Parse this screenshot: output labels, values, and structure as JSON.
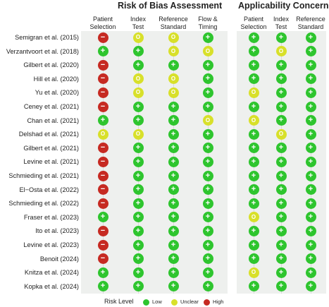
{
  "sections": {
    "bias_title": "Risk of Bias Assessment",
    "applicability_title": "Applicability Concerns"
  },
  "bias_columns": [
    "Patient\nSelection",
    "Index\nTest",
    "Reference\nStandard",
    "Flow &\nTiming"
  ],
  "applicability_columns": [
    "Patient\nSelection",
    "Index\nTest",
    "Reference\nStandard"
  ],
  "symbols": {
    "low": "+",
    "unclear": "O",
    "high": "−"
  },
  "colors": {
    "low": "#2ec52e",
    "unclear": "#d8e02a",
    "high": "#c62a22"
  },
  "legend": {
    "title": "Risk Level",
    "items": [
      {
        "key": "low",
        "label": "Low"
      },
      {
        "key": "unclear",
        "label": "Unclear"
      },
      {
        "key": "high",
        "label": "High"
      }
    ]
  },
  "studies": [
    {
      "name": "Semigran et al. (2015)",
      "bias": [
        "high",
        "unclear",
        "unclear",
        "low"
      ],
      "applicability": [
        "low",
        "low",
        "low"
      ]
    },
    {
      "name": "Verzantvoort et al. (2018)",
      "bias": [
        "low",
        "low",
        "unclear",
        "unclear"
      ],
      "applicability": [
        "low",
        "unclear",
        "low"
      ]
    },
    {
      "name": "Gilbert et al. (2020)",
      "bias": [
        "high",
        "low",
        "low",
        "low"
      ],
      "applicability": [
        "low",
        "low",
        "low"
      ]
    },
    {
      "name": "Hill et al. (2020)",
      "bias": [
        "high",
        "unclear",
        "unclear",
        "low"
      ],
      "applicability": [
        "low",
        "low",
        "low"
      ]
    },
    {
      "name": "Yu et al. (2020)",
      "bias": [
        "high",
        "unclear",
        "unclear",
        "low"
      ],
      "applicability": [
        "unclear",
        "low",
        "low"
      ]
    },
    {
      "name": "Ceney et al. (2021)",
      "bias": [
        "high",
        "low",
        "low",
        "low"
      ],
      "applicability": [
        "low",
        "low",
        "low"
      ]
    },
    {
      "name": "Chan et al. (2021)",
      "bias": [
        "low",
        "low",
        "low",
        "unclear"
      ],
      "applicability": [
        "unclear",
        "low",
        "low"
      ]
    },
    {
      "name": "Delshad et al. (2021)",
      "bias": [
        "unclear",
        "unclear",
        "low",
        "low"
      ],
      "applicability": [
        "low",
        "unclear",
        "low"
      ]
    },
    {
      "name": "Gilbert et al. (2021)",
      "bias": [
        "high",
        "low",
        "low",
        "low"
      ],
      "applicability": [
        "low",
        "low",
        "low"
      ]
    },
    {
      "name": "Levine et al. (2021)",
      "bias": [
        "high",
        "low",
        "low",
        "low"
      ],
      "applicability": [
        "low",
        "low",
        "low"
      ]
    },
    {
      "name": "Schmieding et al. (2021)",
      "bias": [
        "high",
        "low",
        "low",
        "low"
      ],
      "applicability": [
        "low",
        "low",
        "low"
      ]
    },
    {
      "name": "El−Osta et al. (2022)",
      "bias": [
        "high",
        "low",
        "low",
        "low"
      ],
      "applicability": [
        "low",
        "low",
        "low"
      ]
    },
    {
      "name": "Schmieding et al. (2022)",
      "bias": [
        "high",
        "low",
        "low",
        "low"
      ],
      "applicability": [
        "low",
        "low",
        "low"
      ]
    },
    {
      "name": "Fraser et al. (2023)",
      "bias": [
        "low",
        "low",
        "low",
        "low"
      ],
      "applicability": [
        "unclear",
        "low",
        "low"
      ]
    },
    {
      "name": "Ito et al. (2023)",
      "bias": [
        "high",
        "low",
        "low",
        "low"
      ],
      "applicability": [
        "low",
        "low",
        "low"
      ]
    },
    {
      "name": "Levine et al. (2023)",
      "bias": [
        "high",
        "low",
        "low",
        "low"
      ],
      "applicability": [
        "low",
        "low",
        "low"
      ]
    },
    {
      "name": "Benoit (2024)",
      "bias": [
        "high",
        "low",
        "low",
        "low"
      ],
      "applicability": [
        "low",
        "low",
        "low"
      ]
    },
    {
      "name": "Knitza et al. (2024)",
      "bias": [
        "low",
        "low",
        "low",
        "low"
      ],
      "applicability": [
        "unclear",
        "low",
        "low"
      ]
    },
    {
      "name": "Kopka et al. (2024)",
      "bias": [
        "low",
        "low",
        "low",
        "low"
      ],
      "applicability": [
        "low",
        "low",
        "low"
      ]
    }
  ]
}
